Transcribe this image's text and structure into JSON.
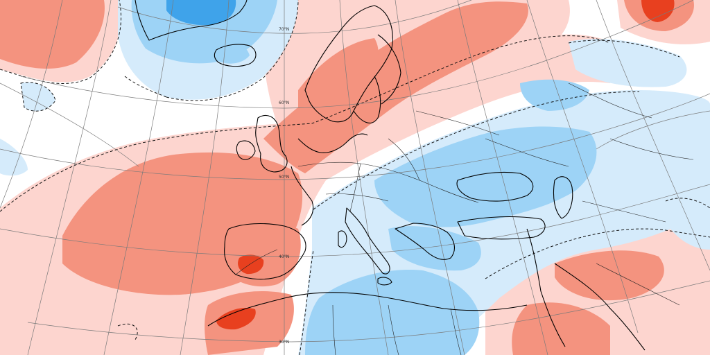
{
  "map": {
    "colors": {
      "background": "#ffffff",
      "anomaly_pos_light": "#fdd5cf",
      "anomaly_pos_medium": "#f4937f",
      "anomaly_pos_strong": "#e8401f",
      "anomaly_neg_light": "#d5ebfb",
      "anomaly_neg_medium": "#9dd3f6",
      "anomaly_neg_strong": "#3fa3ea",
      "coastline": "#000000",
      "graticule": "#7a7a7a"
    },
    "graticule_labels": {
      "lat70": "70°N",
      "lat60": "60°N",
      "lat50": "50°N",
      "lat40": "40°N",
      "lat30": "30°N"
    }
  }
}
